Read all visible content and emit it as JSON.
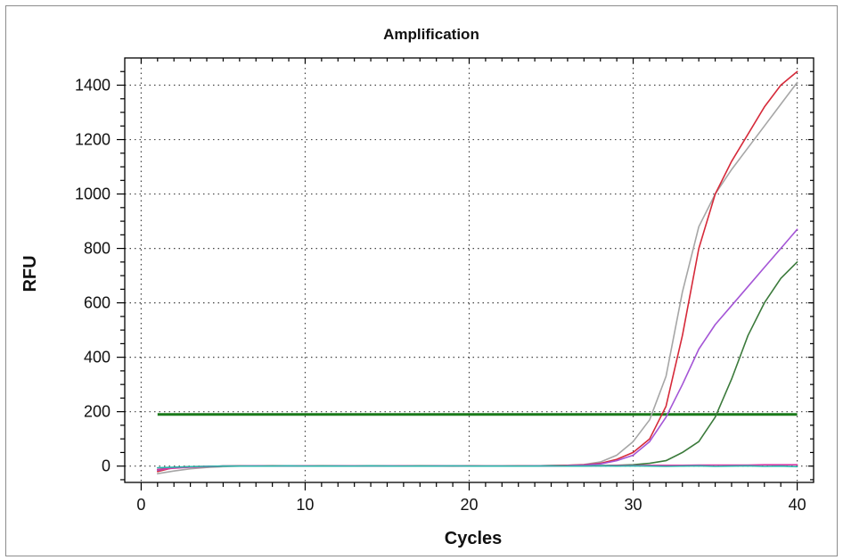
{
  "chart_data": {
    "type": "line",
    "title": "Amplification",
    "xlabel": "Cycles",
    "ylabel": "RFU",
    "xlim": [
      -1,
      41
    ],
    "ylim": [
      -60,
      1500
    ],
    "xticks": [
      0,
      10,
      20,
      30,
      40
    ],
    "yticks": [
      0,
      200,
      400,
      600,
      800,
      1000,
      1200,
      1400
    ],
    "grid": true,
    "legend": "none",
    "threshold": {
      "value": 190,
      "x_range": [
        1,
        40
      ],
      "color": "#1a7a1a"
    },
    "x": [
      1,
      2,
      3,
      4,
      5,
      6,
      7,
      8,
      9,
      10,
      11,
      12,
      13,
      14,
      15,
      16,
      17,
      18,
      19,
      20,
      21,
      22,
      23,
      24,
      25,
      26,
      27,
      28,
      29,
      30,
      31,
      32,
      33,
      34,
      35,
      36,
      37,
      38,
      39,
      40
    ],
    "series": [
      {
        "color": "#a6a6a6",
        "values": [
          -28,
          -18,
          -10,
          -5,
          -2,
          0,
          0,
          1,
          0,
          0,
          1,
          0,
          0,
          1,
          0,
          0,
          1,
          0,
          0,
          1,
          0,
          0,
          1,
          1,
          2,
          3,
          6,
          15,
          40,
          90,
          170,
          330,
          640,
          880,
          1000,
          1090,
          1170,
          1250,
          1330,
          1410
        ]
      },
      {
        "color": "#d62a3a",
        "values": [
          -20,
          -5,
          -2,
          -1,
          0,
          1,
          0,
          1,
          0,
          1,
          0,
          1,
          0,
          1,
          0,
          1,
          0,
          1,
          0,
          1,
          0,
          0,
          1,
          1,
          2,
          3,
          5,
          10,
          25,
          50,
          100,
          220,
          480,
          800,
          1000,
          1120,
          1220,
          1320,
          1400,
          1450
        ]
      },
      {
        "color": "#a455d6",
        "values": [
          -15,
          -6,
          -3,
          -1,
          0,
          0,
          1,
          0,
          1,
          0,
          0,
          1,
          0,
          0,
          1,
          0,
          0,
          1,
          0,
          0,
          0,
          0,
          0,
          1,
          1,
          2,
          4,
          8,
          20,
          40,
          90,
          180,
          300,
          430,
          520,
          590,
          660,
          730,
          800,
          870
        ]
      },
      {
        "color": "#3b7a3b",
        "values": [
          -12,
          -6,
          -3,
          -2,
          0,
          0,
          0,
          1,
          0,
          0,
          1,
          0,
          0,
          1,
          0,
          0,
          1,
          0,
          0,
          0,
          0,
          0,
          0,
          0,
          0,
          1,
          1,
          2,
          3,
          5,
          10,
          20,
          50,
          90,
          180,
          320,
          480,
          600,
          690,
          750
        ]
      },
      {
        "color": "#d63aa6",
        "values": [
          -12,
          -8,
          -4,
          -2,
          0,
          0,
          1,
          0,
          0,
          1,
          0,
          0,
          1,
          0,
          0,
          1,
          0,
          0,
          1,
          0,
          0,
          0,
          0,
          0,
          0,
          1,
          1,
          1,
          2,
          2,
          3,
          3,
          3,
          4,
          4,
          4,
          4,
          5,
          5,
          5
        ]
      },
      {
        "color": "#2bb3aa",
        "values": [
          -6,
          -4,
          -2,
          -1,
          0,
          0,
          0,
          0,
          1,
          0,
          0,
          0,
          0,
          1,
          0,
          0,
          0,
          0,
          1,
          0,
          0,
          0,
          0,
          0,
          1,
          0,
          0,
          1,
          0,
          1,
          0,
          -1,
          0,
          1,
          -1,
          0,
          1,
          -1,
          0,
          -2
        ]
      }
    ]
  }
}
